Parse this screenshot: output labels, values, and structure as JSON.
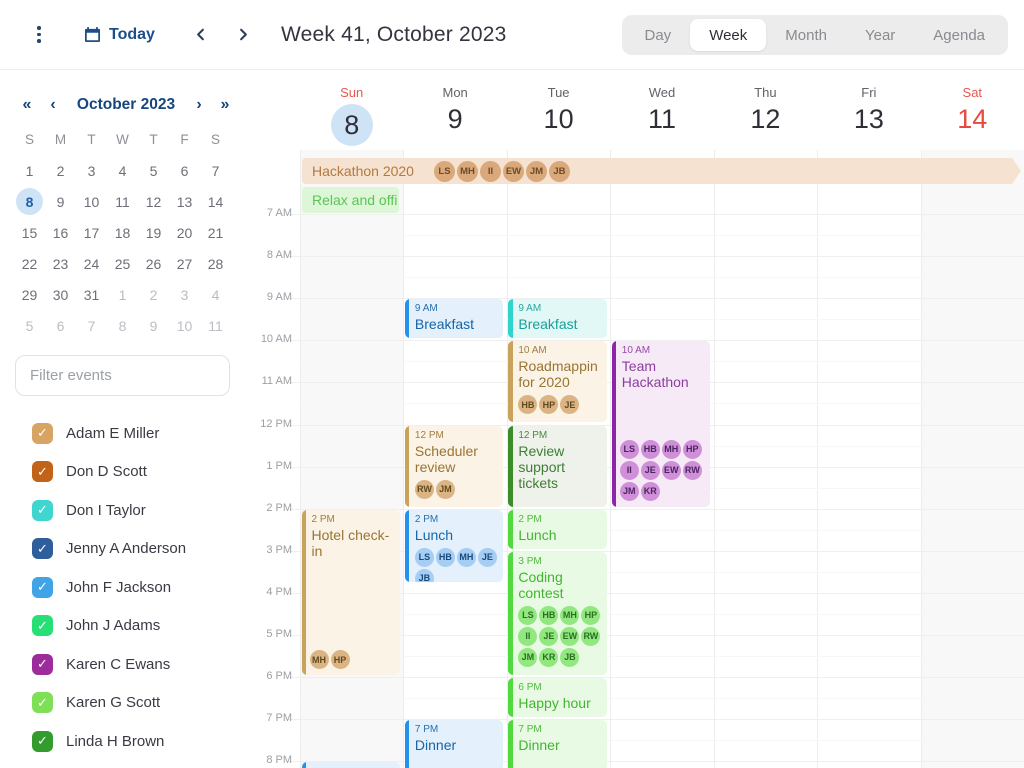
{
  "toolbar": {
    "today_label": "Today",
    "title": "Week 41, October 2023",
    "views": [
      "Day",
      "Week",
      "Month",
      "Year",
      "Agenda"
    ],
    "active_view": "Week"
  },
  "sidebar": {
    "mini_calendar": {
      "prev_year": "«",
      "prev_month": "‹",
      "title": "October 2023",
      "next_month": "›",
      "next_year": "»",
      "day_headers": [
        "S",
        "M",
        "T",
        "W",
        "T",
        "F",
        "S"
      ],
      "weeks": [
        [
          {
            "d": "1"
          },
          {
            "d": "2"
          },
          {
            "d": "3"
          },
          {
            "d": "4"
          },
          {
            "d": "5"
          },
          {
            "d": "6"
          },
          {
            "d": "7"
          }
        ],
        [
          {
            "d": "8",
            "sel": true
          },
          {
            "d": "9"
          },
          {
            "d": "10"
          },
          {
            "d": "11"
          },
          {
            "d": "12"
          },
          {
            "d": "13"
          },
          {
            "d": "14"
          }
        ],
        [
          {
            "d": "15"
          },
          {
            "d": "16"
          },
          {
            "d": "17"
          },
          {
            "d": "18"
          },
          {
            "d": "19"
          },
          {
            "d": "20"
          },
          {
            "d": "21"
          }
        ],
        [
          {
            "d": "22"
          },
          {
            "d": "23"
          },
          {
            "d": "24"
          },
          {
            "d": "25"
          },
          {
            "d": "26"
          },
          {
            "d": "27"
          },
          {
            "d": "28"
          }
        ],
        [
          {
            "d": "29"
          },
          {
            "d": "30"
          },
          {
            "d": "31"
          },
          {
            "d": "1",
            "out": true
          },
          {
            "d": "2",
            "out": true
          },
          {
            "d": "3",
            "out": true
          },
          {
            "d": "4",
            "out": true
          }
        ],
        [
          {
            "d": "5",
            "out": true
          },
          {
            "d": "6",
            "out": true
          },
          {
            "d": "7",
            "out": true
          },
          {
            "d": "8",
            "out": true
          },
          {
            "d": "9",
            "out": true
          },
          {
            "d": "10",
            "out": true
          },
          {
            "d": "11",
            "out": true
          }
        ]
      ]
    },
    "filter_placeholder": "Filter events",
    "people": [
      {
        "name": "Adam E Miller",
        "color": "#d8a463",
        "checked": true
      },
      {
        "name": "Don D Scott",
        "color": "#c26318",
        "checked": true
      },
      {
        "name": "Don I Taylor",
        "color": "#3fd6cf",
        "checked": true
      },
      {
        "name": "Jenny A Anderson",
        "color": "#2e5f9c",
        "checked": true
      },
      {
        "name": "John F Jackson",
        "color": "#41a4e6",
        "checked": true
      },
      {
        "name": "John J Adams",
        "color": "#26df75",
        "checked": true
      },
      {
        "name": "Karen C Ewans",
        "color": "#9c2b9c",
        "checked": true
      },
      {
        "name": "Karen G Scott",
        "color": "#7fdf57",
        "checked": true
      },
      {
        "name": "Linda H Brown",
        "color": "#349b2d",
        "checked": true
      }
    ]
  },
  "calendar": {
    "days": [
      {
        "label": "Sun",
        "num": "8",
        "weekend": true,
        "selected": true
      },
      {
        "label": "Mon",
        "num": "9"
      },
      {
        "label": "Tue",
        "num": "10"
      },
      {
        "label": "Wed",
        "num": "11"
      },
      {
        "label": "Thu",
        "num": "12"
      },
      {
        "label": "Fri",
        "num": "13"
      },
      {
        "label": "Sat",
        "num": "14",
        "weekend": true
      }
    ],
    "hours": [
      "7 AM",
      "8 AM",
      "9 AM",
      "10 AM",
      "11 AM",
      "12 PM",
      "1 PM",
      "2 PM",
      "3 PM",
      "4 PM",
      "5 PM",
      "6 PM",
      "7 PM",
      "8 PM"
    ],
    "allday_events": [
      {
        "title": "Hackathon 2020",
        "col": 0,
        "span": 7,
        "continues": true,
        "palette": "peach",
        "avatars": [
          "LS",
          "MH",
          "II",
          "EW",
          "JM",
          "JB"
        ]
      },
      {
        "title": "Relax and offi",
        "col": 0,
        "span": 1,
        "continues": false,
        "palette": "mint",
        "avatars": []
      }
    ],
    "events": [
      {
        "day": 0,
        "time": "2 PM",
        "title": "Hotel check-in",
        "start": 14,
        "end": 18,
        "palette": "tan",
        "avatars": [
          "MH",
          "HP"
        ],
        "avatars_at_bottom": true
      },
      {
        "day": 0,
        "time": "",
        "title": "",
        "start": 20,
        "end": 20.3,
        "palette": "blue",
        "avatars": []
      },
      {
        "day": 1,
        "time": "9 AM",
        "title": "Breakfast",
        "start": 9,
        "end": 10,
        "palette": "blue",
        "avatars": []
      },
      {
        "day": 1,
        "time": "12 PM",
        "title": "Scheduler review",
        "start": 12,
        "end": 14,
        "palette": "tan",
        "avatars": [
          "RW",
          "JM"
        ]
      },
      {
        "day": 1,
        "time": "2 PM",
        "title": "Lunch",
        "start": 14,
        "end": 15.8,
        "palette": "blue",
        "avatars": [
          "LS",
          "HB",
          "MH",
          "JE",
          "JB"
        ]
      },
      {
        "day": 1,
        "time": "7 PM",
        "title": "Dinner",
        "start": 19,
        "end": 20.3,
        "palette": "blue",
        "avatars": []
      },
      {
        "day": 2,
        "time": "9 AM",
        "title": "Breakfast",
        "start": 9,
        "end": 10,
        "palette": "cyan",
        "avatars": []
      },
      {
        "day": 2,
        "time": "10 AM",
        "title": "Roadmappin for 2020",
        "start": 10,
        "end": 12,
        "palette": "tan",
        "avatars": [
          "HB",
          "HP",
          "JE"
        ]
      },
      {
        "day": 2,
        "time": "12 PM",
        "title": "Review support tickets",
        "start": 12,
        "end": 14,
        "palette": "forest",
        "avatars": []
      },
      {
        "day": 2,
        "time": "2 PM",
        "title": "Lunch",
        "start": 14,
        "end": 15,
        "palette": "green",
        "avatars": []
      },
      {
        "day": 2,
        "time": "3 PM",
        "title": "Coding contest",
        "start": 15,
        "end": 18,
        "palette": "green",
        "avatars": [
          "LS",
          "HB",
          "MH",
          "HP",
          "II",
          "JE",
          "EW",
          "RW",
          "JM",
          "KR",
          "JB"
        ]
      },
      {
        "day": 2,
        "time": "6 PM",
        "title": "Happy hour",
        "start": 18,
        "end": 19,
        "palette": "green",
        "avatars": []
      },
      {
        "day": 2,
        "time": "7 PM",
        "title": "Dinner",
        "start": 19,
        "end": 20.3,
        "palette": "green",
        "avatars": []
      },
      {
        "day": 3,
        "time": "10 AM",
        "title": "Team Hackathon",
        "start": 10,
        "end": 14,
        "palette": "purple",
        "avatars": [
          "LS",
          "HB",
          "MH",
          "HP",
          "II",
          "JE",
          "EW",
          "RW",
          "JM",
          "KR"
        ],
        "avatars_at_bottom": true
      }
    ],
    "palettes": {
      "tan": {
        "bar": "#c9a35b",
        "bg": "#faf3e6",
        "text": "#9a7433",
        "chip": "#dcb483",
        "chip_text": "#5f4a1f"
      },
      "peach": {
        "bar": "",
        "bg": "#f6e2d1",
        "text": "#b5793f",
        "chip": "#d9a97c",
        "chip_text": "#6e4a26"
      },
      "mint": {
        "bar": "",
        "bg": "#dcf6d7",
        "text": "#5bc553",
        "chip": "#a9eda0",
        "chip_text": "#2d6e24"
      },
      "blue": {
        "bar": "#2492ea",
        "bg": "#e4f0fc",
        "text": "#1565a8",
        "chip": "#a6cdf3",
        "chip_text": "#174a7c"
      },
      "cyan": {
        "bar": "#2fd4cd",
        "bg": "#e2f8f7",
        "text": "#17a09a",
        "chip": "#9fe9e5",
        "chip_text": "#0f6a66"
      },
      "forest": {
        "bar": "#3c8c28",
        "bg": "#eef2ea",
        "text": "#3f7d36",
        "chip": "#a9d79d",
        "chip_text": "#2d5e24"
      },
      "green": {
        "bar": "#52d93f",
        "bg": "#e9fae4",
        "text": "#41b430",
        "chip": "#90e87e",
        "chip_text": "#2d6e24"
      },
      "purple": {
        "bar": "#8e24aa",
        "bg": "#f6eaf7",
        "text": "#8c3d9e",
        "chip": "#cf8fd9",
        "chip_text": "#4e2460"
      }
    }
  }
}
